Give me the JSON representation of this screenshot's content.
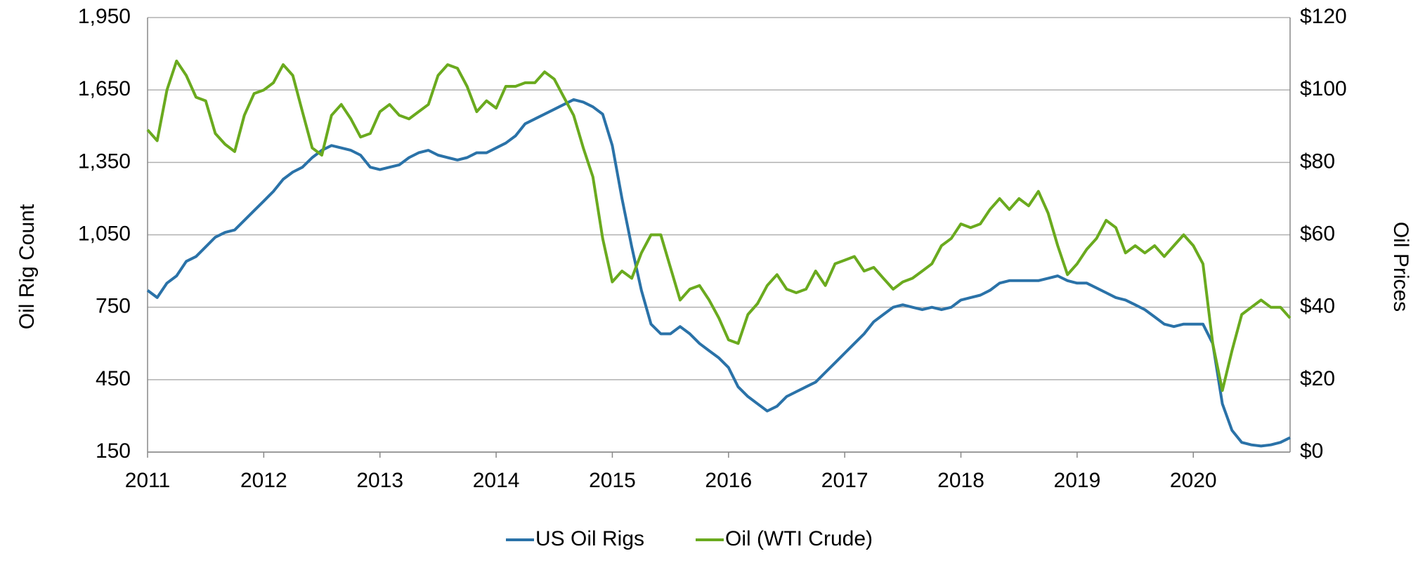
{
  "chart_data": {
    "type": "line",
    "y_label": "Oil Rig Count",
    "y2_label": "Oil Prices",
    "x": [
      2011,
      2011.083,
      2011.167,
      2011.25,
      2011.333,
      2011.417,
      2011.5,
      2011.583,
      2011.667,
      2011.75,
      2011.833,
      2011.917,
      2012,
      2012.083,
      2012.167,
      2012.25,
      2012.333,
      2012.417,
      2012.5,
      2012.583,
      2012.667,
      2012.75,
      2012.833,
      2012.917,
      2013,
      2013.083,
      2013.167,
      2013.25,
      2013.333,
      2013.417,
      2013.5,
      2013.583,
      2013.667,
      2013.75,
      2013.833,
      2013.917,
      2014,
      2014.083,
      2014.167,
      2014.25,
      2014.333,
      2014.417,
      2014.5,
      2014.583,
      2014.667,
      2014.75,
      2014.833,
      2014.917,
      2015,
      2015.083,
      2015.167,
      2015.25,
      2015.333,
      2015.417,
      2015.5,
      2015.583,
      2015.667,
      2015.75,
      2015.833,
      2015.917,
      2016,
      2016.083,
      2016.167,
      2016.25,
      2016.333,
      2016.417,
      2016.5,
      2016.583,
      2016.667,
      2016.75,
      2016.833,
      2016.917,
      2017,
      2017.083,
      2017.167,
      2017.25,
      2017.333,
      2017.417,
      2017.5,
      2017.583,
      2017.667,
      2017.75,
      2017.833,
      2017.917,
      2018,
      2018.083,
      2018.167,
      2018.25,
      2018.333,
      2018.417,
      2018.5,
      2018.583,
      2018.667,
      2018.75,
      2018.833,
      2018.917,
      2019,
      2019.083,
      2019.167,
      2019.25,
      2019.333,
      2019.417,
      2019.5,
      2019.583,
      2019.667,
      2019.75,
      2019.833,
      2019.917,
      2020,
      2020.083,
      2020.167,
      2020.25,
      2020.333,
      2020.417,
      2020.5,
      2020.583,
      2020.667,
      2020.75,
      2020.833
    ],
    "series": [
      {
        "name": "US Oil Rigs",
        "color": "#2a72a8",
        "axis": "y",
        "values": [
          820,
          790,
          850,
          880,
          940,
          960,
          1000,
          1040,
          1060,
          1070,
          1110,
          1150,
          1190,
          1230,
          1280,
          1310,
          1330,
          1370,
          1400,
          1420,
          1410,
          1400,
          1380,
          1330,
          1320,
          1330,
          1340,
          1370,
          1390,
          1400,
          1380,
          1370,
          1360,
          1370,
          1390,
          1390,
          1410,
          1430,
          1460,
          1510,
          1530,
          1550,
          1570,
          1590,
          1610,
          1600,
          1580,
          1550,
          1420,
          1200,
          1000,
          820,
          680,
          640,
          640,
          670,
          640,
          600,
          570,
          540,
          500,
          420,
          380,
          350,
          320,
          340,
          380,
          400,
          420,
          440,
          480,
          520,
          560,
          600,
          640,
          690,
          720,
          750,
          760,
          750,
          740,
          750,
          740,
          750,
          780,
          790,
          800,
          820,
          850,
          860,
          860,
          860,
          860,
          870,
          880,
          860,
          850,
          850,
          830,
          810,
          790,
          780,
          760,
          740,
          710,
          680,
          670,
          680,
          680,
          680,
          600,
          350,
          240,
          190,
          180,
          175,
          180,
          190,
          210
        ]
      },
      {
        "name": "Oil (WTI Crude)",
        "color": "#6aaa1e",
        "axis": "y2",
        "values": [
          89,
          86,
          100,
          108,
          104,
          98,
          97,
          88,
          85,
          83,
          93,
          99,
          100,
          102,
          107,
          104,
          94,
          84,
          82,
          93,
          96,
          92,
          87,
          88,
          94,
          96,
          93,
          92,
          94,
          96,
          104,
          107,
          106,
          101,
          94,
          97,
          95,
          101,
          101,
          102,
          102,
          105,
          103,
          98,
          93,
          84,
          76,
          59,
          47,
          50,
          48,
          55,
          60,
          60,
          51,
          42,
          45,
          46,
          42,
          37,
          31,
          30,
          38,
          41,
          46,
          49,
          45,
          44,
          45,
          50,
          46,
          52,
          53,
          54,
          50,
          51,
          48,
          45,
          47,
          48,
          50,
          52,
          57,
          59,
          63,
          62,
          63,
          67,
          70,
          67,
          70,
          68,
          72,
          66,
          57,
          49,
          52,
          56,
          59,
          64,
          62,
          55,
          57,
          55,
          57,
          54,
          57,
          60,
          57,
          52,
          30,
          17,
          28,
          38,
          40,
          42,
          40,
          40,
          37
        ]
      }
    ],
    "xlim": [
      2011,
      2020.833
    ],
    "xticks": [
      2011,
      2012,
      2013,
      2014,
      2015,
      2016,
      2017,
      2018,
      2019,
      2020
    ],
    "ylim": [
      150,
      1950
    ],
    "yticks": [
      150,
      450,
      750,
      {
        "value": 1050,
        "label": "1,050"
      },
      {
        "value": 1350,
        "label": "1,350"
      },
      {
        "value": 1650,
        "label": "1,650"
      },
      {
        "value": 1950,
        "label": "1,950"
      }
    ],
    "y2lim": [
      0,
      120
    ],
    "y2ticks": [
      {
        "value": 0,
        "label": "$0"
      },
      {
        "value": 20,
        "label": "$20"
      },
      {
        "value": 40,
        "label": "$40"
      },
      {
        "value": 60,
        "label": "$60"
      },
      {
        "value": 80,
        "label": "$80"
      },
      {
        "value": 100,
        "label": "$100"
      },
      {
        "value": 120,
        "label": "$120"
      }
    ],
    "grid": true,
    "legend": "bottom"
  }
}
